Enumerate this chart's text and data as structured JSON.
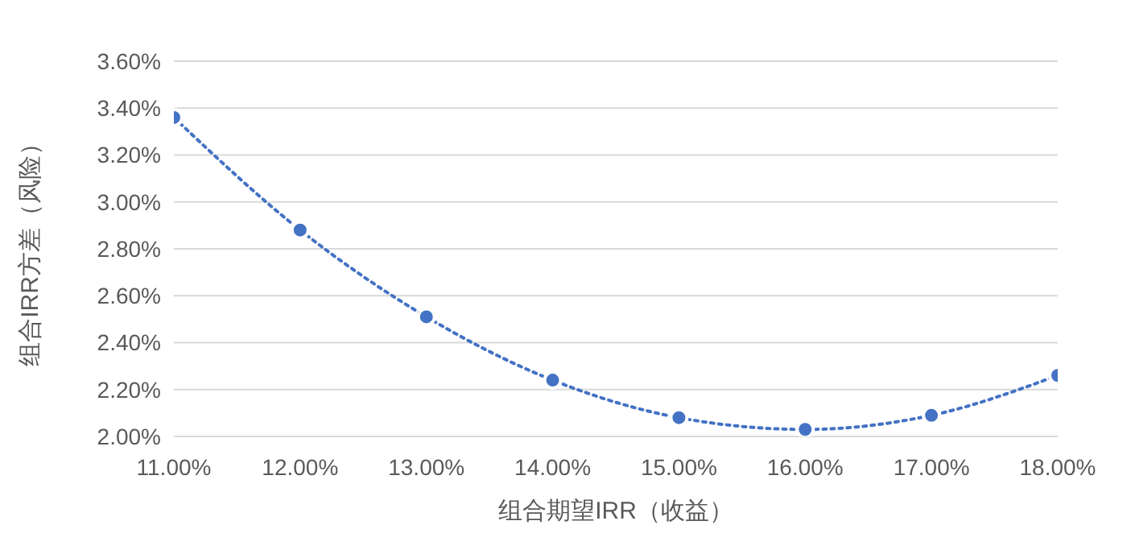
{
  "chart_data": {
    "type": "line",
    "xlabel": "组合期望IRR（收益）",
    "ylabel": "组合IRR方差（风险）",
    "x": [
      11,
      12,
      13,
      14,
      15,
      16,
      17,
      18
    ],
    "series": [
      {
        "color": "#4472c4",
        "values": [
          3.36,
          2.88,
          2.51,
          2.24,
          2.08,
          2.03,
          2.09,
          2.26
        ]
      }
    ],
    "xlim": [
      11,
      18
    ],
    "xticks": [
      {
        "value": 11,
        "label": "11.00%"
      },
      {
        "value": 12,
        "label": "12.00%"
      },
      {
        "value": 13,
        "label": "13.00%"
      },
      {
        "value": 14,
        "label": "14.00%"
      },
      {
        "value": 15,
        "label": "15.00%"
      },
      {
        "value": 16,
        "label": "16.00%"
      },
      {
        "value": 17,
        "label": "17.00%"
      },
      {
        "value": 18,
        "label": "18.00%"
      }
    ],
    "ylim": [
      2,
      3.6
    ],
    "yticks": [
      {
        "value": 2,
        "label": "2.00%"
      },
      {
        "value": 2.2,
        "label": "2.20%"
      },
      {
        "value": 2.4,
        "label": "2.40%"
      },
      {
        "value": 2.6,
        "label": "2.60%"
      },
      {
        "value": 2.8,
        "label": "2.80%"
      },
      {
        "value": 3,
        "label": "3.00%"
      },
      {
        "value": 3.2,
        "label": "3.20%"
      },
      {
        "value": 3.4,
        "label": "3.40%"
      },
      {
        "value": 3.6,
        "label": "3.60%"
      }
    ],
    "grid": "y",
    "marker": "circle",
    "line_style": "dotted"
  }
}
